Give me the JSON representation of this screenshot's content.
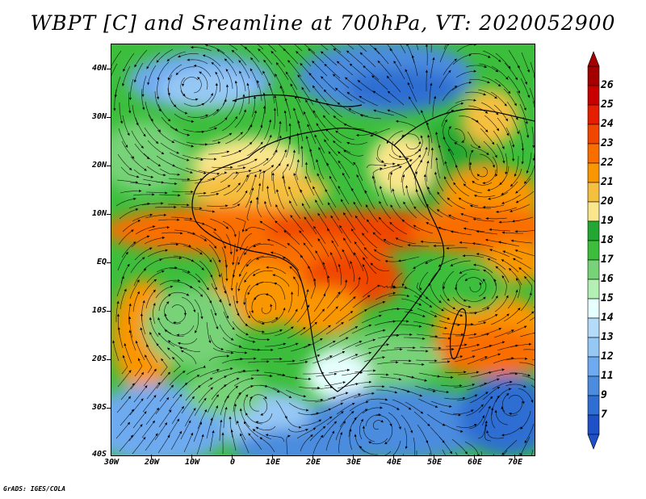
{
  "title": "WBPT [C] and Sreamline at 700hPa, VT: 2020052900",
  "footer": "GrADS: IGES/COLA",
  "map": {
    "variable": "WBPT [C]",
    "level": "700hPa",
    "valid_time": "2020052900",
    "lat_labels": [
      "40N",
      "30N",
      "20N",
      "10N",
      "EQ",
      "10S",
      "20S",
      "30S",
      "40S"
    ],
    "lat_values": [
      40,
      30,
      20,
      10,
      0,
      -10,
      -20,
      -30,
      -40
    ],
    "lon_labels": [
      "30W",
      "20W",
      "10W",
      "0",
      "10E",
      "20E",
      "30E",
      "40E",
      "50E",
      "60E",
      "70E"
    ],
    "lon_values": [
      -30,
      -20,
      -10,
      0,
      10,
      20,
      30,
      40,
      50,
      60,
      70
    ],
    "lat_range": [
      -40,
      45
    ],
    "lon_range": [
      -30,
      75
    ]
  },
  "colorbar": {
    "labels": [
      "26",
      "25",
      "24",
      "23",
      "22",
      "21",
      "20",
      "19",
      "18",
      "17",
      "16",
      "15",
      "14",
      "13",
      "12",
      "11",
      "9",
      "7"
    ],
    "colors": [
      "#a50000",
      "#c80000",
      "#e61e00",
      "#f04600",
      "#fa6e00",
      "#fa9600",
      "#f5c040",
      "#fae68c",
      "#22a832",
      "#3cbe3c",
      "#78d278",
      "#b4f0b4",
      "#e6ffff",
      "#b4dcfa",
      "#96c8f5",
      "#6eaaf0",
      "#4b8cde",
      "#2f6ed2",
      "#1e50c8"
    ]
  }
}
